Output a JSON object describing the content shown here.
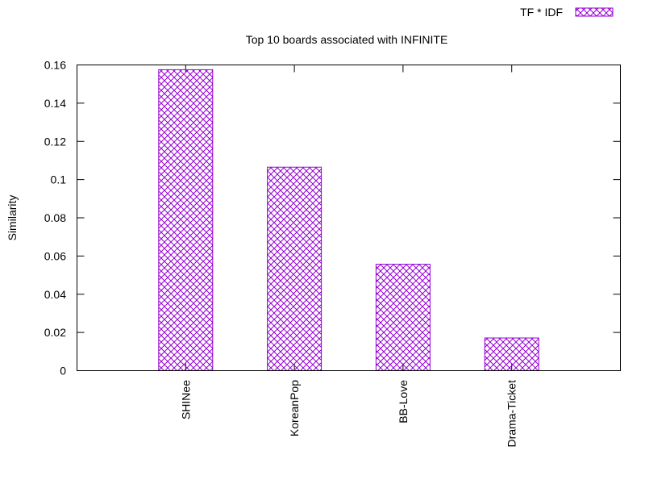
{
  "chart_data": {
    "type": "bar",
    "title": "Top 10 boards associated with INFINITE",
    "xlabel": "",
    "ylabel": "Similarity",
    "categories": [
      "SHINee",
      "KoreanPop",
      "BB-Love",
      "Drama-Ticket"
    ],
    "series": [
      {
        "name": "TF * IDF",
        "values": [
          0.1575,
          0.1065,
          0.0557,
          0.0171
        ],
        "color": "#9400d3",
        "fill": "crosshatch"
      }
    ],
    "ylim": [
      0,
      0.16
    ],
    "yticks": [
      "0",
      "0.02",
      "0.04",
      "0.06",
      "0.08",
      "0.1",
      "0.12",
      "0.14",
      "0.16"
    ],
    "ytick_values": [
      0,
      0.02,
      0.04,
      0.06,
      0.08,
      0.1,
      0.12,
      0.14,
      0.16
    ],
    "legend_position": "top-right",
    "grid": false
  }
}
